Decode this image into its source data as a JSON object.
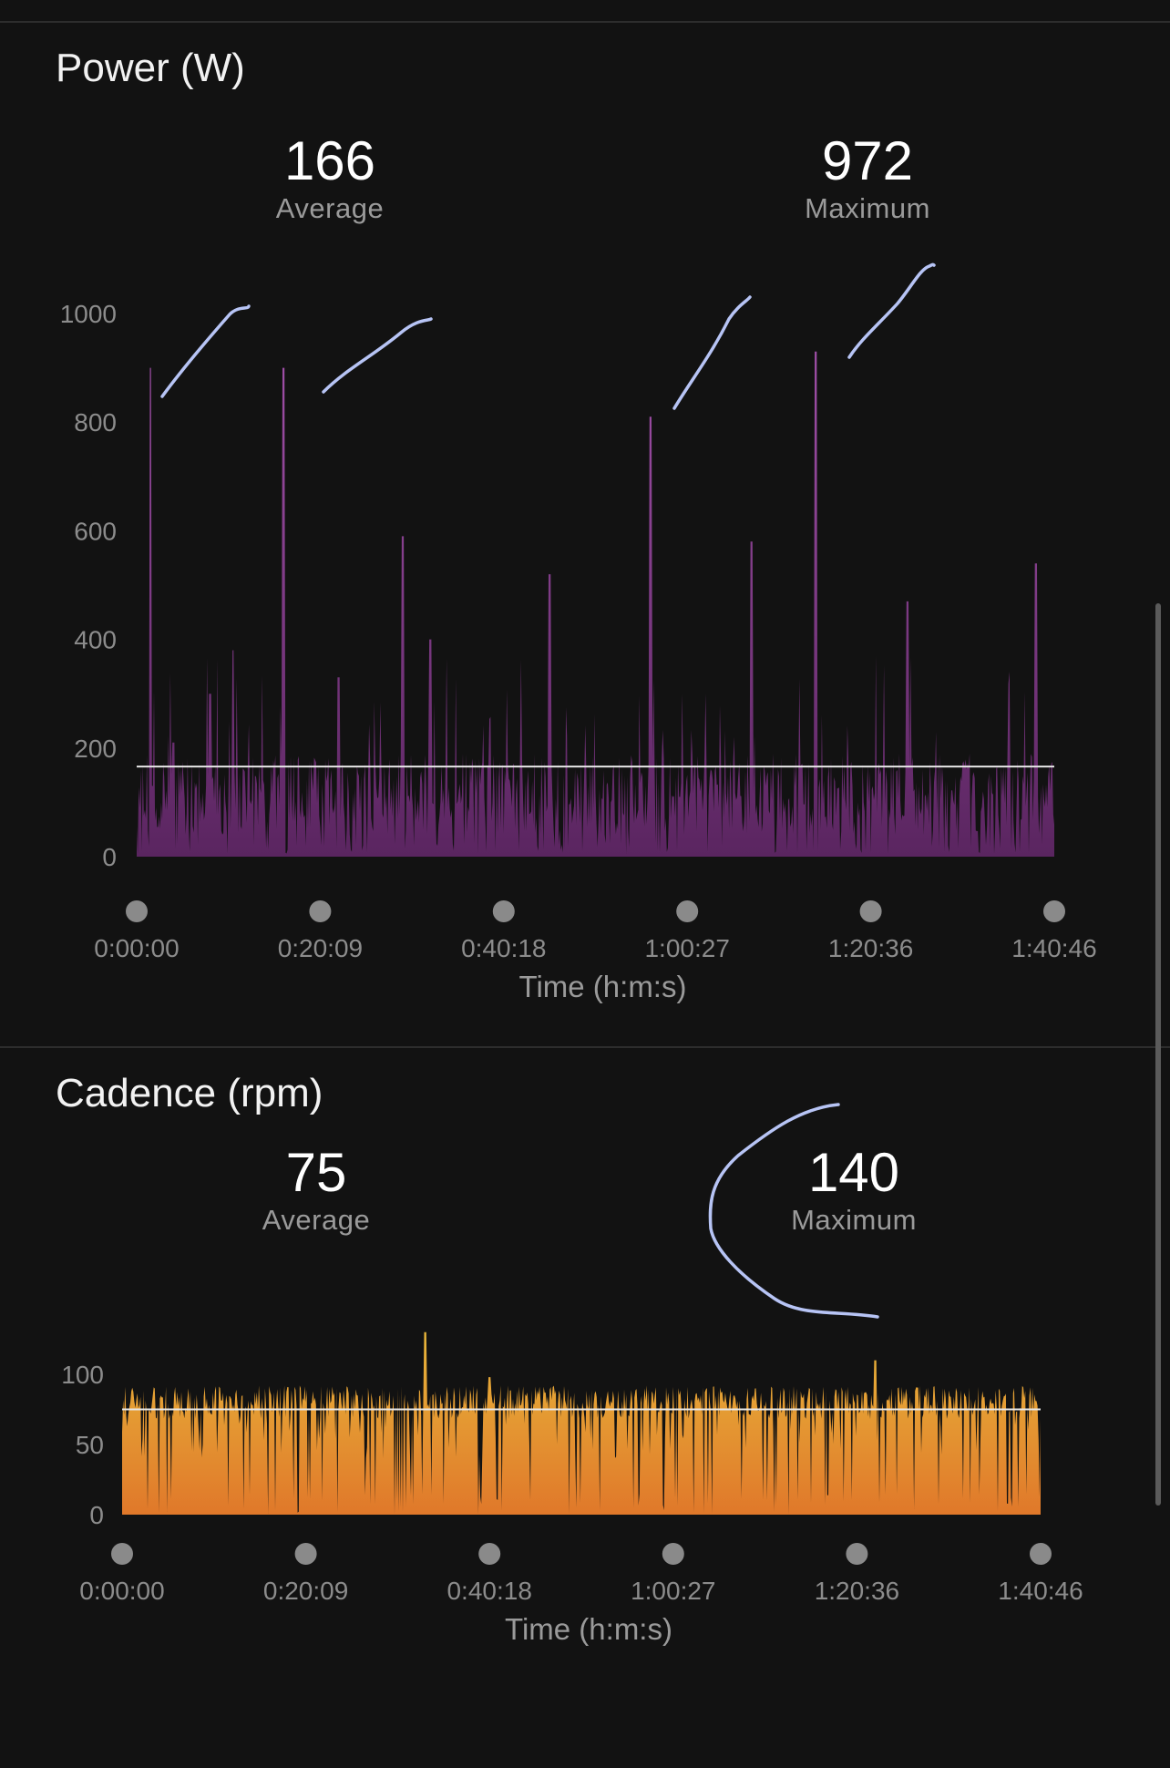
{
  "power": {
    "title": "Power (W)",
    "average_value": "166",
    "average_label": "Average",
    "maximum_value": "972",
    "maximum_label": "Maximum"
  },
  "cadence": {
    "title": "Cadence (rpm)",
    "average_value": "75",
    "average_label": "Average",
    "maximum_value": "140",
    "maximum_label": "Maximum"
  },
  "colors": {
    "background": "#121212",
    "power_fill_top": "#a04fa8",
    "power_fill_bottom": "#5a2560",
    "cadence_fill_top": "#e8b63a",
    "cadence_fill_bottom": "#e0782a",
    "annotation_stroke": "#b7c4f5",
    "average_line": "#e8e8e8"
  },
  "chart_data": [
    {
      "type": "area",
      "title": "Power (W)",
      "xlabel": "Time (h:m:s)",
      "ylabel": "",
      "ylim": [
        0,
        1000
      ],
      "yticks": [
        0,
        200,
        400,
        600,
        800,
        1000
      ],
      "xticks": [
        "0:00:00",
        "0:20:09",
        "0:40:18",
        "1:00:27",
        "1:20:36",
        "1:40:46"
      ],
      "xlim_seconds": [
        0,
        6046
      ],
      "average": 166,
      "maximum": 972,
      "grid": false,
      "peaks": [
        {
          "x": 0.015,
          "y": 900
        },
        {
          "x": 0.04,
          "y": 210
        },
        {
          "x": 0.08,
          "y": 300
        },
        {
          "x": 0.105,
          "y": 380
        },
        {
          "x": 0.16,
          "y": 900
        },
        {
          "x": 0.22,
          "y": 330
        },
        {
          "x": 0.29,
          "y": 590
        },
        {
          "x": 0.32,
          "y": 400
        },
        {
          "x": 0.45,
          "y": 520
        },
        {
          "x": 0.56,
          "y": 810
        },
        {
          "x": 0.67,
          "y": 580
        },
        {
          "x": 0.74,
          "y": 930
        },
        {
          "x": 0.84,
          "y": 470
        },
        {
          "x": 0.98,
          "y": 540
        }
      ]
    },
    {
      "type": "area",
      "title": "Cadence (rpm)",
      "xlabel": "Time (h:m:s)",
      "ylabel": "",
      "ylim": [
        0,
        100
      ],
      "yticks": [
        0,
        50,
        100
      ],
      "xticks": [
        "0:00:00",
        "0:20:09",
        "0:40:18",
        "1:00:27",
        "1:20:36",
        "1:40:46"
      ],
      "xlim_seconds": [
        0,
        6046
      ],
      "average": 75,
      "maximum": 140,
      "grid": false,
      "peaks": [
        {
          "x": 0.33,
          "y": 135
        },
        {
          "x": 0.4,
          "y": 98
        },
        {
          "x": 0.82,
          "y": 110
        }
      ]
    }
  ]
}
